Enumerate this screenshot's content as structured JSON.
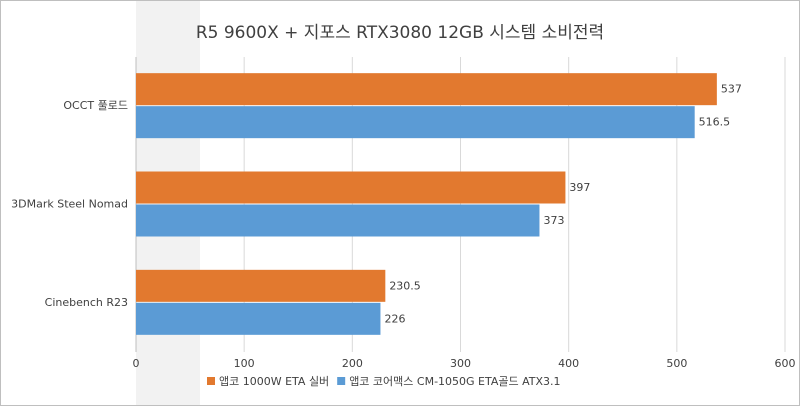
{
  "chart_data": {
    "type": "hbar",
    "title": "R5 9600X + 지포스 RTX3080 12GB 시스템 소비전력",
    "categories": [
      "OCCT 풀로드",
      "3DMark Steel Nomad",
      "Cinebench R23"
    ],
    "series": [
      {
        "name": "앱코 1000W ETA 실버",
        "color": "#e2792f",
        "values": [
          537,
          397,
          230.5
        ]
      },
      {
        "name": "앱코 코어맥스 CM-1050G ETA골드 ATX3.1",
        "color": "#5b9bd5",
        "values": [
          516.5,
          373,
          226
        ]
      }
    ],
    "xlim": [
      0,
      600
    ],
    "xticks": [
      0,
      100,
      200,
      300,
      400,
      500,
      600
    ],
    "grid": true,
    "legend": "bottom"
  }
}
